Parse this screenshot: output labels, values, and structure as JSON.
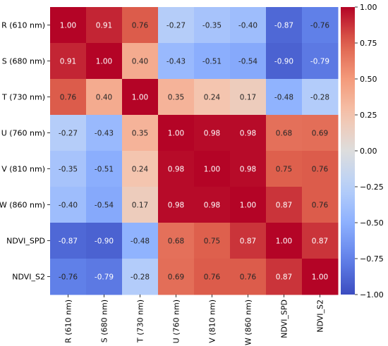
{
  "chart_data": {
    "type": "heatmap",
    "title": "",
    "rows": [
      "R (610 nm)",
      "S (680 nm)",
      "T (730 nm)",
      "U (760 nm)",
      "V (810 nm)",
      "W (860 nm)",
      "NDVI_SPD",
      "NDVI_S2"
    ],
    "columns": [
      "R (610 nm)",
      "S (680 nm)",
      "T (730 nm)",
      "U (760 nm)",
      "V (810 nm)",
      "W (860 nm)",
      "NDVI_SPD",
      "NDVI_S2"
    ],
    "values": [
      [
        1.0,
        0.91,
        0.76,
        -0.27,
        -0.35,
        -0.4,
        -0.87,
        -0.76
      ],
      [
        0.91,
        1.0,
        0.4,
        -0.43,
        -0.51,
        -0.54,
        -0.9,
        -0.79
      ],
      [
        0.76,
        0.4,
        1.0,
        0.35,
        0.24,
        0.17,
        -0.48,
        -0.28
      ],
      [
        -0.27,
        -0.43,
        0.35,
        1.0,
        0.98,
        0.98,
        0.68,
        0.69
      ],
      [
        -0.35,
        -0.51,
        0.24,
        0.98,
        1.0,
        0.98,
        0.75,
        0.76
      ],
      [
        -0.4,
        -0.54,
        0.17,
        0.98,
        0.98,
        1.0,
        0.87,
        0.76
      ],
      [
        -0.87,
        -0.9,
        -0.48,
        0.68,
        0.75,
        0.87,
        1.0,
        0.87
      ],
      [
        -0.76,
        -0.79,
        -0.28,
        0.69,
        0.76,
        0.76,
        0.87,
        1.0
      ]
    ],
    "colormap": "coolwarm",
    "vmin": -1.0,
    "vmax": 1.0,
    "colorbar_ticks": [
      "1.00",
      "0.75",
      "0.50",
      "0.25",
      "0.00",
      "−0.25",
      "−0.50",
      "−0.75",
      "−1.00"
    ],
    "colorbar_tick_values": [
      1.0,
      0.75,
      0.5,
      0.25,
      0.0,
      -0.25,
      -0.5,
      -0.75,
      -1.0
    ],
    "colors": {
      "low": "#3b4cc0",
      "mid": "#dddddd",
      "high": "#b40426"
    }
  }
}
